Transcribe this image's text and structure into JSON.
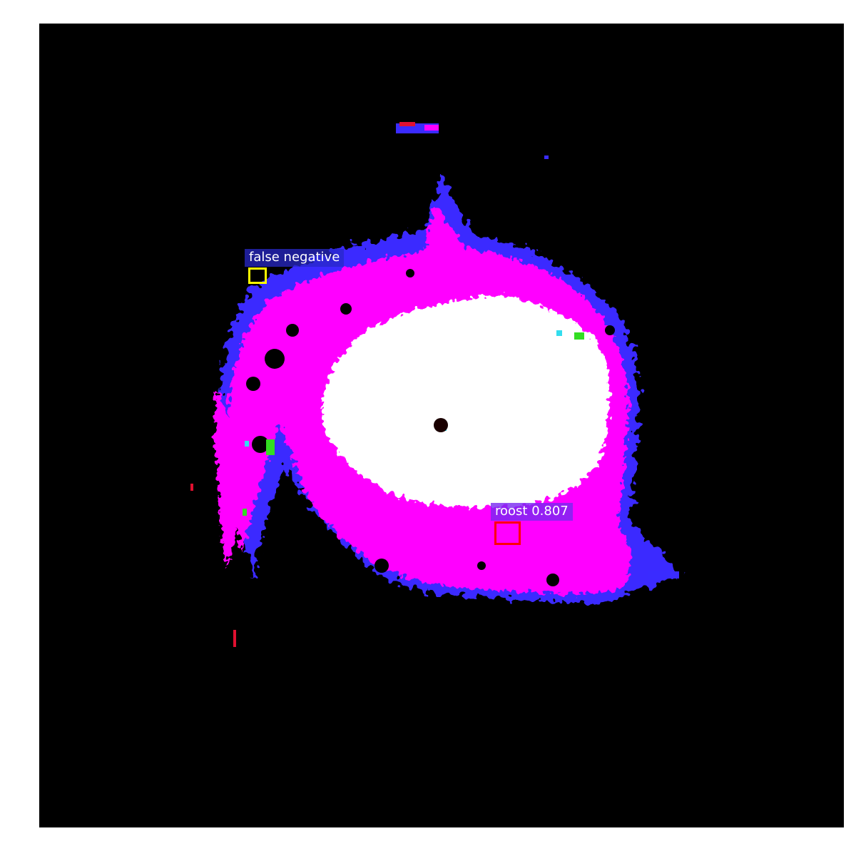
{
  "detections": {
    "false_negative": {
      "label": "false negative",
      "box_color": "#ffff00",
      "label_bg": "#2828c8"
    },
    "roost": {
      "label": "roost 0.807",
      "box_color": "#ff0000",
      "label_bg": "#7828f0"
    }
  },
  "palette": {
    "background": "#000000",
    "high_reflectivity": "#ffffff",
    "mid_reflectivity": "#ff00ff",
    "low_reflectivity": "#3a2bff",
    "noise_red": "#e01030",
    "noise_green": "#33dd22",
    "noise_cyan": "#33ddee",
    "radar_center": "#1a0000"
  }
}
